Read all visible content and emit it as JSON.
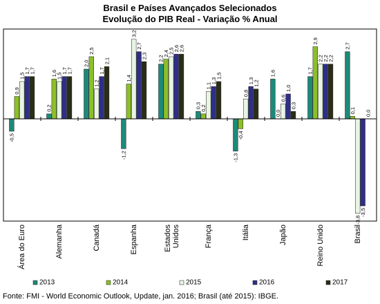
{
  "chart_data": {
    "type": "bar",
    "title": "Brasil e Países Avançados Selecionados",
    "subtitle": "Evolução do PIB Real - Variação % Anual",
    "xlabel": "",
    "ylabel": "",
    "ylim": [
      -4.0,
      3.4
    ],
    "grid": false,
    "legend_position": "bottom",
    "categories": [
      "Área do Euro",
      "Alemanha",
      "Canadá",
      "Espanha",
      "Estados Unidos",
      "França",
      "Itália",
      "Japão",
      "Reino Unido",
      "Brasil"
    ],
    "series": [
      {
        "name": "2013",
        "color": "#1c8a78",
        "values": [
          -0.5,
          0.2,
          2.0,
          -1.2,
          2.2,
          0.3,
          -1.3,
          1.6,
          1.7,
          2.7
        ],
        "labels": [
          "-0,5",
          "0,2",
          "2,0",
          "-1,2",
          "2,2",
          "0,3",
          "-1,3",
          "1,6",
          "1,7",
          "2,7"
        ]
      },
      {
        "name": "2014",
        "color": "#8cbf2a",
        "values": [
          0.9,
          1.6,
          2.5,
          1.4,
          2.4,
          0.2,
          -0.4,
          0.0,
          2.9,
          0.1
        ],
        "labels": [
          "0,9",
          "1,6",
          "2,5",
          "1,4",
          "2,4",
          "0,2",
          "-0,4",
          "0,0",
          "2,9",
          "0,1"
        ]
      },
      {
        "name": "2015",
        "color": "#e8f5e4",
        "values": [
          1.5,
          1.5,
          1.2,
          3.2,
          2.5,
          1.1,
          0.8,
          0.6,
          2.2,
          -3.8
        ],
        "labels": [
          "1,5",
          "1,5",
          "1,2",
          "3,2",
          "2,5",
          "1,1",
          "0,8",
          "0,6",
          "2,2",
          "-3,8"
        ]
      },
      {
        "name": "2016",
        "color": "#2e2f86",
        "values": [
          1.7,
          1.7,
          1.7,
          2.7,
          2.6,
          1.3,
          1.3,
          1.0,
          2.2,
          -3.5
        ],
        "labels": [
          "1,7",
          "1,7",
          "1,7",
          "2,7",
          "2,6",
          "1,3",
          "1,3",
          "1,0",
          "2,2",
          "-3,5"
        ]
      },
      {
        "name": "2017",
        "color": "#2a2e16",
        "values": [
          1.7,
          1.7,
          2.1,
          2.3,
          2.6,
          1.5,
          1.2,
          0.3,
          2.2,
          0.0
        ],
        "labels": [
          "1,7",
          "1,7",
          "2,1",
          "2,3",
          "2,6",
          "1,5",
          "1,2",
          "0,3",
          "2,2",
          "0,0"
        ]
      }
    ],
    "source": "Fonte: FMI - World Economic Outlook, Update, jan. 2016; Brasil (até 2015): IBGE."
  }
}
